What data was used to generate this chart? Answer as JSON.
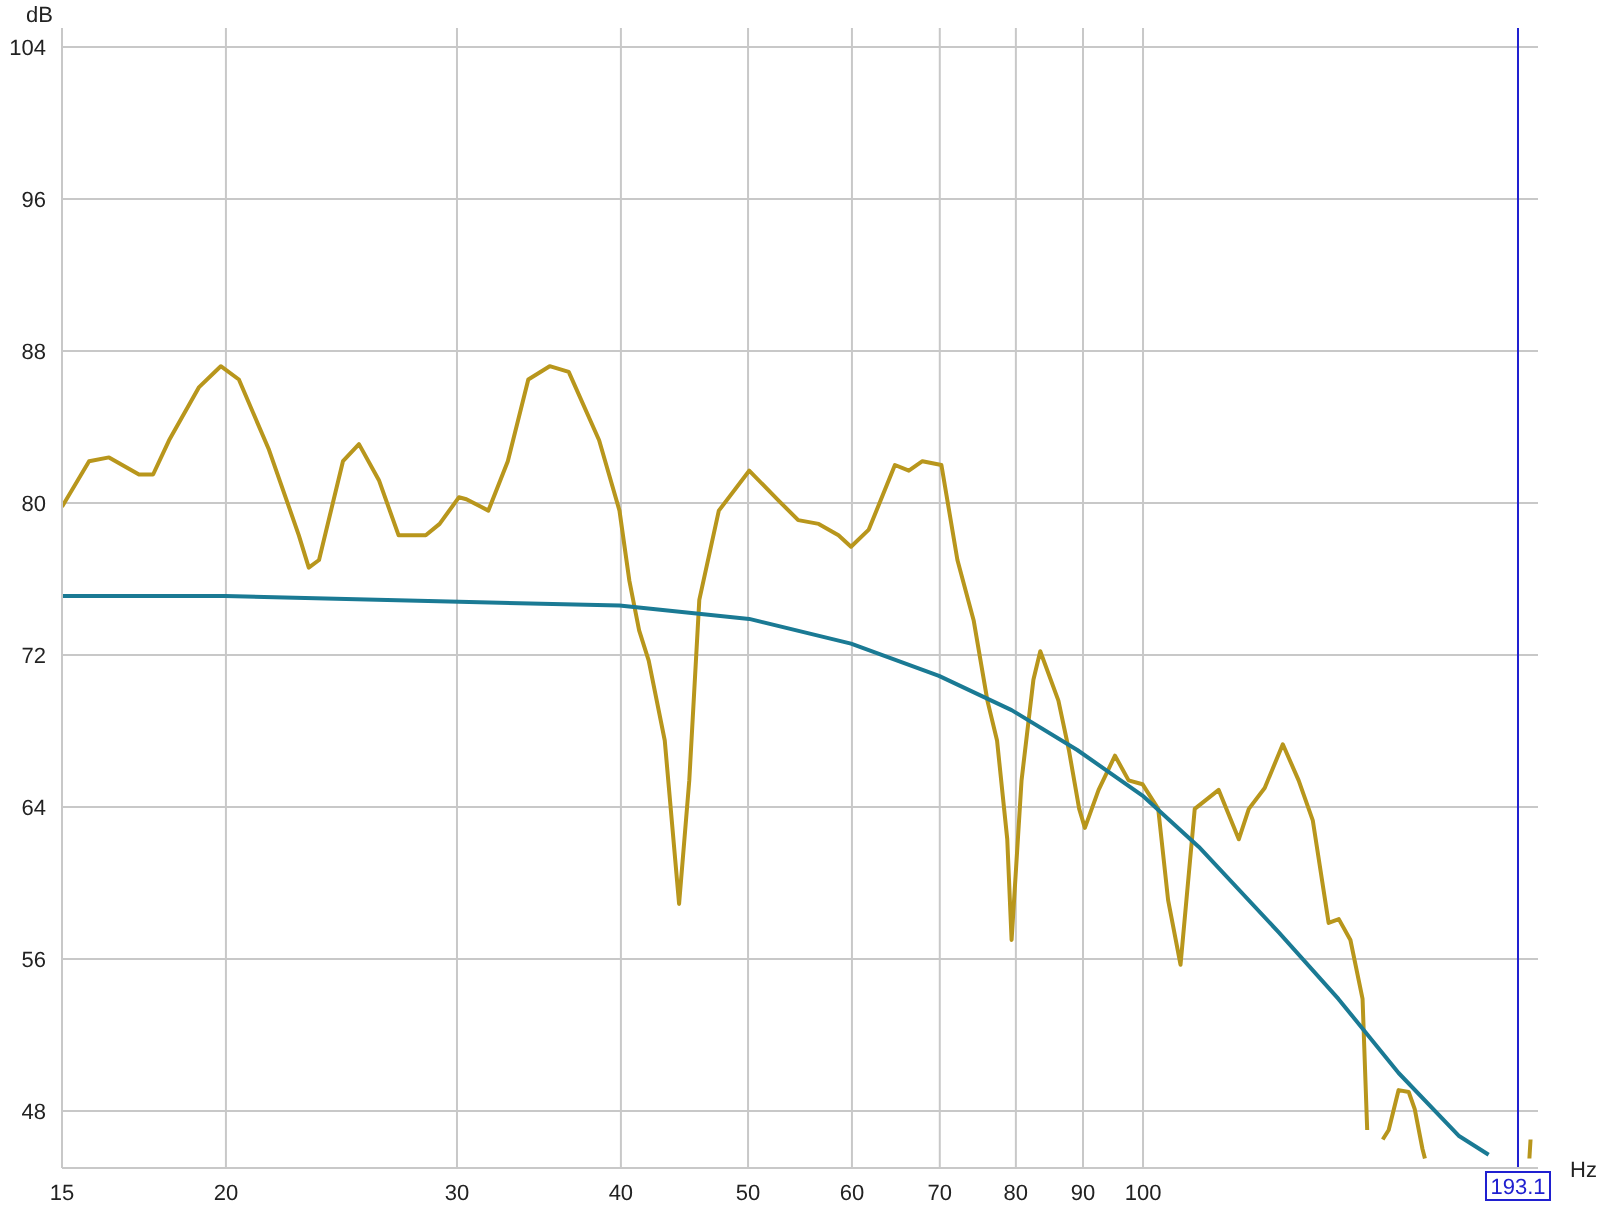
{
  "chart_data": {
    "type": "line",
    "xlabel": "Hz",
    "ylabel": "dB",
    "log": "x",
    "grid": true,
    "marker": "none",
    "line_style": "solid",
    "xlim": [
      15,
      200
    ],
    "ylim": [
      45,
      105
    ],
    "xticks": [
      15,
      20,
      30,
      40,
      50,
      60,
      70,
      80,
      90,
      100
    ],
    "yticks": [
      48,
      56,
      64,
      72,
      80,
      88,
      96,
      104
    ],
    "ref_lines": [
      {
        "axis": "x",
        "value": 193.1,
        "label": "193.1",
        "color": "#2020d0"
      }
    ],
    "series": [
      {
        "color": "#b8961c",
        "x": [
          15.0,
          15.73,
          16.29,
          17.17,
          17.6,
          18.1,
          19.08,
          19.82,
          20.46,
          21.57,
          22.73,
          23.13,
          23.55,
          24.56,
          25.26,
          26.16,
          27.08,
          28.4,
          29.1,
          30.1,
          30.5,
          31.7,
          32.8,
          34.0,
          35.3,
          36.5,
          38.5,
          39.9,
          40.6,
          41.3,
          42.0,
          43.2,
          44.3,
          45.1,
          45.9,
          47.5,
          50.1,
          52.8,
          54.6,
          56.6,
          58.6,
          59.9,
          61.8,
          64.7,
          66.3,
          67.9,
          70.2,
          72.2,
          74.3,
          76.1,
          77.4,
          78.8,
          79.4,
          80.8,
          82.5,
          83.5,
          86.2,
          87.8,
          89.4,
          90.3,
          92.5,
          95.2,
          97.5,
          99.9,
          102.7,
          104.5,
          106.8,
          109.5,
          114.2,
          118.3,
          120.4,
          123.8,
          127.8,
          131.4,
          134.7,
          138.5,
          141.0,
          143.9,
          147.0,
          148.2,
          150.5,
          152.3,
          153.9,
          156.6,
          159.4,
          161.1,
          163.3,
          164.0,
          170.0,
          197.0,
          197.4
        ],
        "values": [
          79.8,
          82.2,
          82.4,
          81.5,
          81.5,
          83.3,
          86.1,
          87.2,
          86.5,
          82.8,
          78.3,
          76.6,
          77.0,
          82.2,
          83.1,
          81.2,
          78.3,
          78.3,
          78.9,
          80.3,
          80.2,
          79.6,
          82.2,
          86.5,
          87.2,
          86.9,
          83.3,
          79.6,
          75.9,
          73.3,
          71.7,
          67.5,
          58.9,
          65.4,
          74.9,
          79.6,
          81.7,
          80.1,
          79.1,
          78.9,
          78.3,
          77.7,
          78.6,
          82.0,
          81.7,
          82.2,
          82.0,
          77.0,
          73.8,
          69.6,
          67.5,
          62.3,
          57.0,
          65.4,
          70.7,
          72.2,
          69.6,
          67.0,
          63.9,
          62.9,
          64.9,
          66.7,
          65.4,
          65.2,
          63.9,
          59.1,
          55.7,
          63.9,
          64.9,
          62.3,
          63.9,
          65.0,
          67.3,
          65.4,
          63.3,
          57.9,
          58.1,
          57.0,
          53.9,
          47.0,
          null,
          46.5,
          47.0,
          49.1,
          49.0,
          48.1,
          46.0,
          45.5,
          null,
          45.5,
          46.5
        ]
      },
      {
        "color": "#1a7a94",
        "x": [
          15.0,
          19.97,
          30.1,
          39.9,
          50.1,
          59.9,
          69.9,
          79.4,
          89.1,
          99.9,
          110.3,
          126.9,
          140.9,
          156.6,
          174.0,
          183.4
        ],
        "values": [
          75.1,
          75.1,
          74.8,
          74.6,
          73.9,
          72.6,
          70.9,
          69.1,
          67.0,
          64.6,
          61.9,
          57.4,
          53.9,
          50.0,
          46.7,
          45.7
        ]
      }
    ]
  }
}
